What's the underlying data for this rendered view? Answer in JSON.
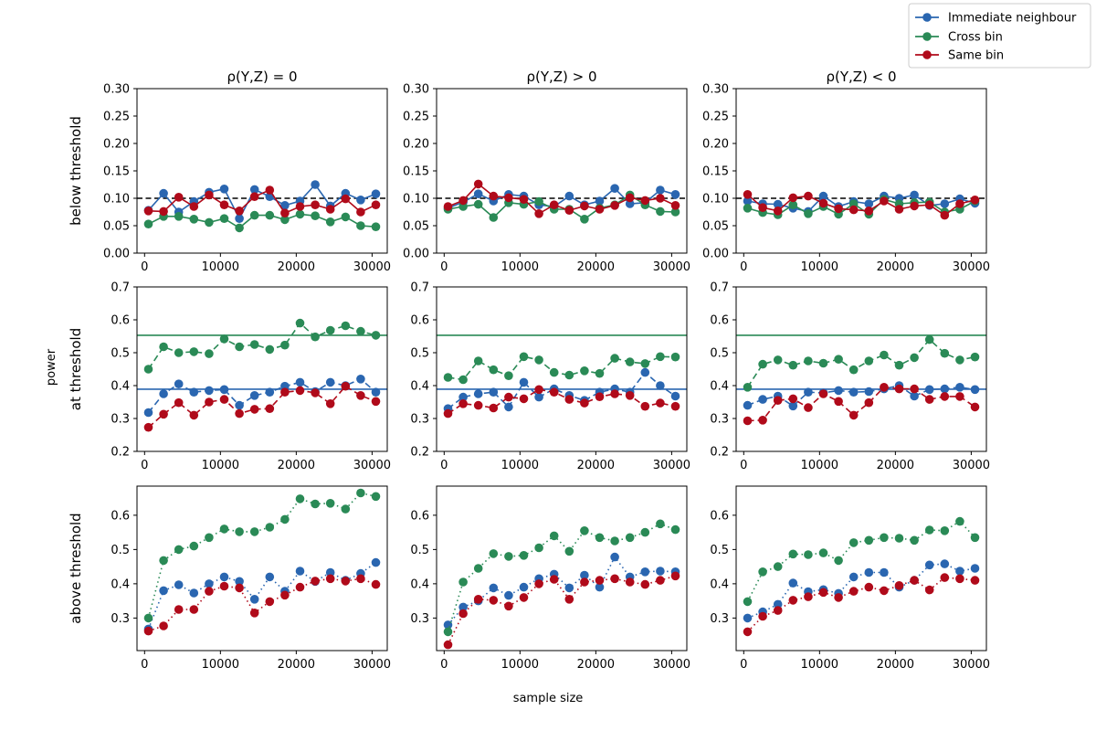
{
  "figure": {
    "ylabel": "power",
    "xlabel": "sample size",
    "col_titles": [
      "ρ(Y,Z)  = 0",
      "ρ(Y,Z)  > 0",
      "ρ(Y,Z)  < 0"
    ],
    "row_labels": [
      "below threshold",
      "at threshold",
      "above threshold"
    ],
    "legend": [
      {
        "name": "Immediate neighbour",
        "color": "#2a66b0"
      },
      {
        "name": "Cross bin",
        "color": "#2a8a56"
      },
      {
        "name": "Same bin",
        "color": "#b00a1a"
      }
    ]
  },
  "chart_data": {
    "type": "line",
    "x": [
      500,
      2500,
      4500,
      6500,
      8500,
      10500,
      12500,
      14500,
      16500,
      18500,
      20500,
      22500,
      24500,
      26500,
      28500,
      30500
    ],
    "xlim": [
      -1000,
      32000
    ],
    "xticks": [
      0,
      10000,
      20000,
      30000
    ],
    "rows": [
      {
        "label": "below threshold",
        "linestyle": "solid",
        "ylim": [
          0,
          0.3
        ],
        "yticks": [
          0.0,
          0.05,
          0.1,
          0.15,
          0.2,
          0.25,
          0.3
        ],
        "ytick_labels": [
          "0.00",
          "0.05",
          "0.10",
          "0.15",
          "0.20",
          "0.25",
          "0.30"
        ],
        "reference": {
          "type": "dashed",
          "color": "#000000",
          "value": 0.1
        },
        "panels": [
          {
            "title": "ρ(Y,Z)  = 0",
            "series": [
              {
                "name": "Immediate neighbour",
                "values": [
                  0.078,
                  0.109,
                  0.075,
                  0.094,
                  0.111,
                  0.117,
                  0.063,
                  0.116,
                  0.103,
                  0.087,
                  0.095,
                  0.125,
                  0.086,
                  0.109,
                  0.097,
                  0.108
                ]
              },
              {
                "name": "Cross bin",
                "values": [
                  0.053,
                  0.067,
                  0.067,
                  0.062,
                  0.056,
                  0.063,
                  0.046,
                  0.069,
                  0.069,
                  0.061,
                  0.071,
                  0.068,
                  0.057,
                  0.066,
                  0.05,
                  0.048
                ]
              },
              {
                "name": "Same bin",
                "values": [
                  0.077,
                  0.076,
                  0.102,
                  0.085,
                  0.106,
                  0.088,
                  0.077,
                  0.103,
                  0.115,
                  0.073,
                  0.085,
                  0.088,
                  0.08,
                  0.099,
                  0.075,
                  0.088
                ]
              }
            ]
          },
          {
            "title": "ρ(Y,Z)  > 0",
            "series": [
              {
                "name": "Immediate neighbour",
                "values": [
                  0.082,
                  0.093,
                  0.108,
                  0.095,
                  0.107,
                  0.104,
                  0.088,
                  0.085,
                  0.104,
                  0.088,
                  0.095,
                  0.118,
                  0.09,
                  0.092,
                  0.115,
                  0.107
                ]
              },
              {
                "name": "Cross bin",
                "values": [
                  0.08,
                  0.085,
                  0.089,
                  0.065,
                  0.092,
                  0.089,
                  0.094,
                  0.08,
                  0.08,
                  0.062,
                  0.082,
                  0.088,
                  0.106,
                  0.088,
                  0.076,
                  0.075
                ]
              },
              {
                "name": "Same bin",
                "values": [
                  0.085,
                  0.096,
                  0.126,
                  0.104,
                  0.101,
                  0.098,
                  0.072,
                  0.088,
                  0.078,
                  0.086,
                  0.08,
                  0.087,
                  0.101,
                  0.096,
                  0.1,
                  0.087
                ]
              }
            ]
          },
          {
            "title": "ρ(Y,Z)  < 0",
            "series": [
              {
                "name": "Immediate neighbour",
                "values": [
                  0.095,
                  0.09,
                  0.089,
                  0.082,
                  0.076,
                  0.104,
                  0.085,
                  0.094,
                  0.09,
                  0.104,
                  0.1,
                  0.106,
                  0.087,
                  0.09,
                  0.099,
                  0.091
                ]
              },
              {
                "name": "Cross bin",
                "values": [
                  0.082,
                  0.074,
                  0.07,
                  0.088,
                  0.072,
                  0.085,
                  0.071,
                  0.09,
                  0.071,
                  0.098,
                  0.09,
                  0.092,
                  0.093,
                  0.075,
                  0.08,
                  0.095
                ]
              },
              {
                "name": "Same bin",
                "values": [
                  0.107,
                  0.083,
                  0.077,
                  0.101,
                  0.104,
                  0.091,
                  0.081,
                  0.079,
                  0.077,
                  0.095,
                  0.08,
                  0.086,
                  0.088,
                  0.069,
                  0.09,
                  0.097
                ]
              }
            ]
          }
        ]
      },
      {
        "label": "at threshold",
        "linestyle": "dashed",
        "ylim": [
          0.2,
          0.7
        ],
        "yticks": [
          0.2,
          0.3,
          0.4,
          0.5,
          0.6,
          0.7
        ],
        "ytick_labels": [
          "0.2",
          "0.3",
          "0.4",
          "0.5",
          "0.6",
          "0.7"
        ],
        "references": [
          {
            "series": "Cross bin",
            "value": 0.553
          },
          {
            "series": "Immediate neighbour",
            "value": 0.389
          }
        ],
        "panels": [
          {
            "title": "ρ(Y,Z)  = 0",
            "series": [
              {
                "name": "Immediate neighbour",
                "values": [
                  0.318,
                  0.375,
                  0.405,
                  0.38,
                  0.385,
                  0.388,
                  0.34,
                  0.37,
                  0.38,
                  0.398,
                  0.41,
                  0.382,
                  0.41,
                  0.4,
                  0.42,
                  0.38
                ]
              },
              {
                "name": "Cross bin",
                "values": [
                  0.45,
                  0.518,
                  0.5,
                  0.503,
                  0.497,
                  0.542,
                  0.518,
                  0.525,
                  0.51,
                  0.523,
                  0.59,
                  0.548,
                  0.568,
                  0.582,
                  0.565,
                  0.553
                ]
              },
              {
                "name": "Same bin",
                "values": [
                  0.273,
                  0.313,
                  0.348,
                  0.31,
                  0.35,
                  0.358,
                  0.315,
                  0.328,
                  0.33,
                  0.38,
                  0.385,
                  0.378,
                  0.345,
                  0.398,
                  0.37,
                  0.352
                ]
              }
            ]
          },
          {
            "title": "ρ(Y,Z)  > 0",
            "series": [
              {
                "name": "Immediate neighbour",
                "values": [
                  0.33,
                  0.365,
                  0.375,
                  0.38,
                  0.335,
                  0.41,
                  0.365,
                  0.39,
                  0.37,
                  0.355,
                  0.38,
                  0.39,
                  0.38,
                  0.44,
                  0.4,
                  0.368
                ]
              },
              {
                "name": "Cross bin",
                "values": [
                  0.425,
                  0.418,
                  0.475,
                  0.448,
                  0.43,
                  0.488,
                  0.478,
                  0.44,
                  0.432,
                  0.445,
                  0.437,
                  0.483,
                  0.472,
                  0.467,
                  0.488,
                  0.487
                ]
              },
              {
                "name": "Same bin",
                "values": [
                  0.315,
                  0.345,
                  0.34,
                  0.332,
                  0.365,
                  0.36,
                  0.388,
                  0.38,
                  0.358,
                  0.347,
                  0.366,
                  0.375,
                  0.37,
                  0.337,
                  0.347,
                  0.337
                ]
              }
            ]
          },
          {
            "title": "ρ(Y,Z)  < 0",
            "series": [
              {
                "name": "Immediate neighbour",
                "values": [
                  0.34,
                  0.358,
                  0.368,
                  0.338,
                  0.38,
                  0.378,
                  0.385,
                  0.38,
                  0.382,
                  0.39,
                  0.4,
                  0.368,
                  0.388,
                  0.39,
                  0.395,
                  0.388
                ]
              },
              {
                "name": "Cross bin",
                "values": [
                  0.395,
                  0.465,
                  0.478,
                  0.462,
                  0.475,
                  0.468,
                  0.48,
                  0.448,
                  0.475,
                  0.493,
                  0.462,
                  0.485,
                  0.54,
                  0.498,
                  0.478,
                  0.487
                ]
              },
              {
                "name": "Same bin",
                "values": [
                  0.293,
                  0.295,
                  0.355,
                  0.36,
                  0.333,
                  0.375,
                  0.352,
                  0.31,
                  0.348,
                  0.395,
                  0.39,
                  0.39,
                  0.358,
                  0.367,
                  0.367,
                  0.335
                ]
              }
            ]
          }
        ]
      },
      {
        "label": "above threshold",
        "linestyle": "dotted",
        "ylim": [
          0.205,
          0.685
        ],
        "yticks": [
          0.3,
          0.4,
          0.5,
          0.6
        ],
        "ytick_labels": [
          "0.3",
          "0.4",
          "0.5",
          "0.6"
        ],
        "panels": [
          {
            "title": "ρ(Y,Z)  = 0",
            "series": [
              {
                "name": "Immediate neighbour",
                "values": [
                  0.268,
                  0.38,
                  0.397,
                  0.373,
                  0.4,
                  0.42,
                  0.407,
                  0.355,
                  0.42,
                  0.378,
                  0.437,
                  0.407,
                  0.433,
                  0.41,
                  0.43,
                  0.462
                ]
              },
              {
                "name": "Cross bin",
                "values": [
                  0.3,
                  0.468,
                  0.5,
                  0.51,
                  0.535,
                  0.56,
                  0.552,
                  0.552,
                  0.565,
                  0.588,
                  0.648,
                  0.633,
                  0.635,
                  0.618,
                  0.665,
                  0.655
                ]
              },
              {
                "name": "Same bin",
                "values": [
                  0.262,
                  0.277,
                  0.325,
                  0.325,
                  0.378,
                  0.393,
                  0.388,
                  0.315,
                  0.348,
                  0.367,
                  0.39,
                  0.408,
                  0.415,
                  0.408,
                  0.415,
                  0.398
                ]
              }
            ]
          },
          {
            "title": "ρ(Y,Z)  > 0",
            "series": [
              {
                "name": "Immediate neighbour",
                "values": [
                  0.28,
                  0.332,
                  0.35,
                  0.388,
                  0.366,
                  0.39,
                  0.415,
                  0.428,
                  0.388,
                  0.425,
                  0.39,
                  0.478,
                  0.42,
                  0.435,
                  0.437,
                  0.435
                ]
              },
              {
                "name": "Cross bin",
                "values": [
                  0.26,
                  0.405,
                  0.445,
                  0.488,
                  0.48,
                  0.483,
                  0.505,
                  0.54,
                  0.495,
                  0.555,
                  0.535,
                  0.525,
                  0.535,
                  0.55,
                  0.575,
                  0.558
                ]
              },
              {
                "name": "Same bin",
                "values": [
                  0.222,
                  0.313,
                  0.355,
                  0.352,
                  0.335,
                  0.36,
                  0.4,
                  0.413,
                  0.355,
                  0.405,
                  0.41,
                  0.415,
                  0.405,
                  0.398,
                  0.41,
                  0.423
                ]
              }
            ]
          },
          {
            "title": "ρ(Y,Z)  < 0",
            "series": [
              {
                "name": "Immediate neighbour",
                "values": [
                  0.3,
                  0.318,
                  0.34,
                  0.402,
                  0.377,
                  0.383,
                  0.372,
                  0.42,
                  0.433,
                  0.433,
                  0.39,
                  0.41,
                  0.455,
                  0.458,
                  0.437,
                  0.445
                ]
              },
              {
                "name": "Cross bin",
                "values": [
                  0.348,
                  0.435,
                  0.45,
                  0.487,
                  0.485,
                  0.49,
                  0.468,
                  0.52,
                  0.527,
                  0.535,
                  0.533,
                  0.527,
                  0.557,
                  0.555,
                  0.582,
                  0.535
                ]
              },
              {
                "name": "Same bin",
                "values": [
                  0.26,
                  0.305,
                  0.322,
                  0.352,
                  0.362,
                  0.375,
                  0.36,
                  0.378,
                  0.39,
                  0.38,
                  0.395,
                  0.41,
                  0.382,
                  0.418,
                  0.415,
                  0.41
                ]
              }
            ]
          }
        ]
      }
    ]
  }
}
